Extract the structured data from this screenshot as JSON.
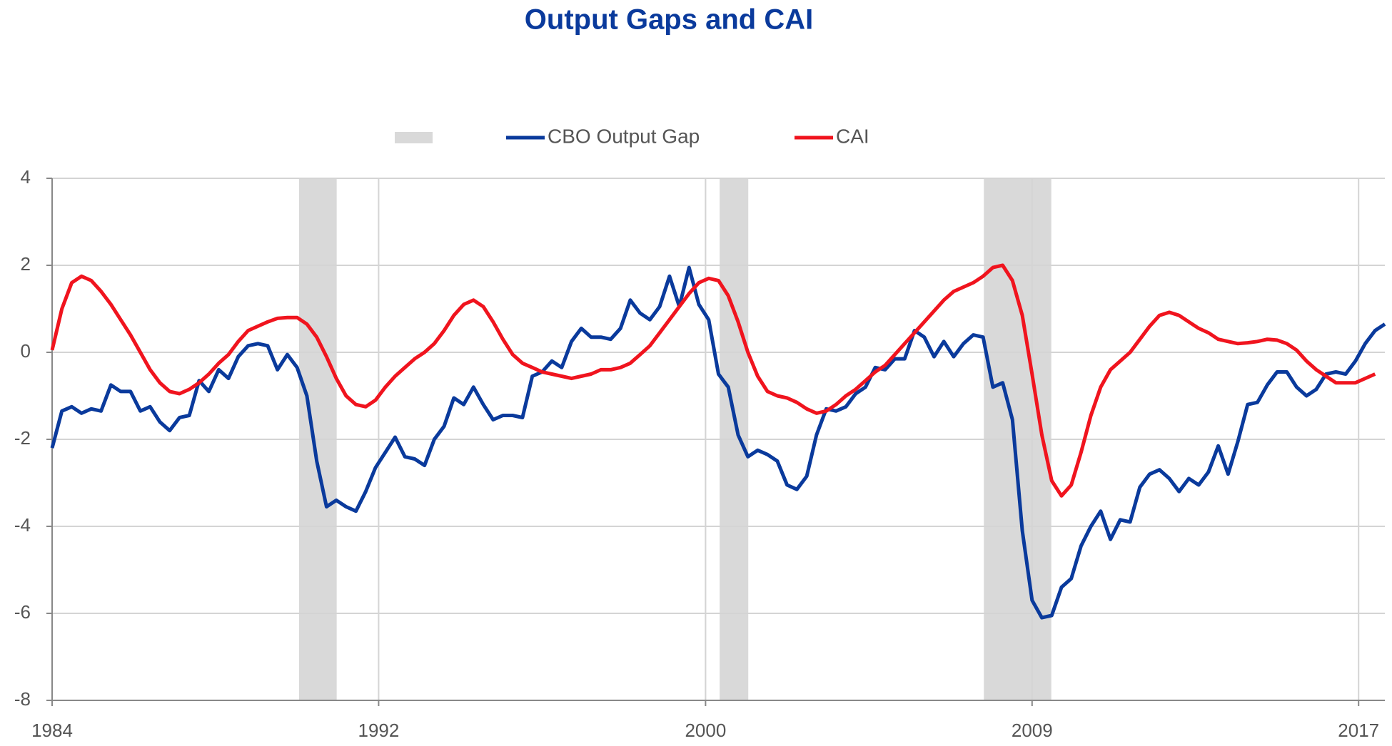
{
  "chart_data": {
    "type": "line",
    "title": "Output Gaps and CAI",
    "title_color": "#0a3a9c",
    "x": [
      1984,
      1984.25,
      1984.5,
      1984.75,
      1985,
      1985.25,
      1985.5,
      1985.75,
      1986,
      1986.25,
      1986.5,
      1986.75,
      1987,
      1987.25,
      1987.5,
      1987.75,
      1988,
      1988.25,
      1988.5,
      1988.75,
      1989,
      1989.25,
      1989.5,
      1989.75,
      1990,
      1990.25,
      1990.5,
      1990.75,
      1991,
      1991.25,
      1991.5,
      1991.75,
      1992,
      1992.25,
      1992.5,
      1992.75,
      1993,
      1993.25,
      1993.5,
      1993.75,
      1994,
      1994.25,
      1994.5,
      1994.75,
      1995,
      1995.25,
      1995.5,
      1995.75,
      1996,
      1996.25,
      1996.5,
      1996.75,
      1997,
      1997.25,
      1997.5,
      1997.75,
      1998,
      1998.25,
      1998.5,
      1998.75,
      1999,
      1999.25,
      1999.5,
      1999.75,
      2000,
      2000.25,
      2000.5,
      2000.75,
      2001,
      2001.25,
      2001.5,
      2001.75,
      2002,
      2002.25,
      2002.5,
      2002.75,
      2003,
      2003.25,
      2003.5,
      2003.75,
      2004,
      2004.25,
      2004.5,
      2004.75,
      2005,
      2005.25,
      2005.5,
      2005.75,
      2006,
      2006.25,
      2006.5,
      2006.75,
      2007,
      2007.25,
      2007.5,
      2007.75,
      2008,
      2008.25,
      2008.5,
      2008.75,
      2009,
      2009.25,
      2009.5,
      2009.75,
      2010,
      2010.25,
      2010.5,
      2010.75,
      2011,
      2011.25,
      2011.5,
      2011.75,
      2012,
      2012.25,
      2012.5,
      2012.75,
      2013,
      2013.25,
      2013.5,
      2013.75,
      2014,
      2014.25,
      2014.5,
      2014.75,
      2015,
      2015.25,
      2015.5,
      2015.75,
      2016,
      2016.25,
      2016.5,
      2016.75,
      2017,
      2017.25,
      2017.5,
      2017.75,
      2018
    ],
    "series": [
      {
        "name": "CBO Output Gap",
        "color": "#0a3a9c",
        "values": [
          -2.2,
          -1.35,
          -1.25,
          -1.4,
          -1.3,
          -1.35,
          -0.75,
          -0.9,
          -0.9,
          -1.35,
          -1.25,
          -1.6,
          -1.8,
          -1.5,
          -1.45,
          -0.65,
          -0.9,
          -0.4,
          -0.6,
          -0.1,
          0.15,
          0.2,
          0.15,
          -0.4,
          -0.05,
          -0.35,
          -1.0,
          -2.5,
          -3.55,
          -3.4,
          -3.55,
          -3.65,
          -3.2,
          -2.65,
          -2.3,
          -1.95,
          -2.4,
          -2.45,
          -2.6,
          -2.0,
          -1.7,
          -1.05,
          -1.2,
          -0.8,
          -1.2,
          -1.55,
          -1.45,
          -1.45,
          -1.5,
          -0.55,
          -0.45,
          -0.2,
          -0.35,
          0.25,
          0.55,
          0.35,
          0.35,
          0.3,
          0.55,
          1.2,
          0.9,
          0.75,
          1.05,
          1.75,
          1.05,
          1.95,
          1.1,
          0.75,
          -0.5,
          -0.8,
          -1.9,
          -2.4,
          -2.25,
          -2.35,
          -2.5,
          -3.05,
          -3.15,
          -2.85,
          -1.9,
          -1.3,
          -1.35,
          -1.25,
          -0.95,
          -0.8,
          -0.35,
          -0.4,
          -0.15,
          -0.15,
          0.5,
          0.35,
          -0.1,
          0.25,
          -0.1,
          0.2,
          0.4,
          0.35,
          -0.8,
          -0.7,
          -1.55,
          -4.1,
          -5.7,
          -6.1,
          -6.05,
          -5.4,
          -5.2,
          -4.45,
          -4.0,
          -3.65,
          -4.3,
          -3.85,
          -3.9,
          -3.1,
          -2.8,
          -2.7,
          -2.9,
          -3.2,
          -2.9,
          -3.05,
          -2.75,
          -2.15,
          -2.8,
          -2.05,
          -1.2,
          -1.15,
          -0.75,
          -0.45,
          -0.45,
          -0.8,
          -1.0,
          -0.85,
          -0.5,
          -0.45,
          -0.5,
          -0.2,
          0.2,
          0.5,
          0.65
        ]
      },
      {
        "name": "CAI",
        "color": "#f0141e",
        "values": [
          0.05,
          1.0,
          1.6,
          1.75,
          1.65,
          1.4,
          1.1,
          0.75,
          0.4,
          0.0,
          -0.4,
          -0.7,
          -0.9,
          -0.95,
          -0.85,
          -0.7,
          -0.5,
          -0.25,
          -0.05,
          0.25,
          0.5,
          0.6,
          0.7,
          0.78,
          0.8,
          0.8,
          0.65,
          0.35,
          -0.1,
          -0.6,
          -1.0,
          -1.2,
          -1.25,
          -1.1,
          -0.8,
          -0.55,
          -0.35,
          -0.15,
          0.0,
          0.2,
          0.5,
          0.85,
          1.1,
          1.2,
          1.05,
          0.7,
          0.3,
          -0.05,
          -0.25,
          -0.35,
          -0.45,
          -0.5,
          -0.55,
          -0.6,
          -0.55,
          -0.5,
          -0.4,
          -0.4,
          -0.35,
          -0.25,
          -0.05,
          0.15,
          0.45,
          0.75,
          1.05,
          1.35,
          1.6,
          1.7,
          1.65,
          1.3,
          0.7,
          0.0,
          -0.55,
          -0.9,
          -1.0,
          -1.05,
          -1.15,
          -1.3,
          -1.4,
          -1.35,
          -1.2,
          -1.0,
          -0.85,
          -0.65,
          -0.45,
          -0.3,
          -0.05,
          0.2,
          0.45,
          0.7,
          0.95,
          1.2,
          1.4,
          1.5,
          1.6,
          1.75,
          1.95,
          2.0,
          1.65,
          0.85,
          -0.5,
          -1.9,
          -2.95,
          -3.3,
          -3.05,
          -2.3,
          -1.45,
          -0.8,
          -0.4,
          -0.2,
          0.0,
          0.3,
          0.6,
          0.85,
          0.92,
          0.85,
          0.7,
          0.55,
          0.45,
          0.3,
          0.25,
          0.2,
          0.22,
          0.25,
          0.3,
          0.28,
          0.2,
          0.05,
          -0.2,
          -0.4,
          -0.55,
          -0.7,
          -0.7,
          -0.7,
          -0.6,
          -0.5,
          null
        ]
      }
    ],
    "recessions": [
      [
        1990.3,
        1991.26
      ],
      [
        2001.03,
        2001.76
      ],
      [
        2007.77,
        2009.49
      ]
    ],
    "recession_color": "#d9d9d9",
    "xlim": [
      1984,
      2018
    ],
    "xticks": [
      {
        "value": 1984,
        "label": "1984"
      },
      {
        "value": 1992.33,
        "label": "1992"
      },
      {
        "value": 2000.67,
        "label": "2000"
      },
      {
        "value": 2009,
        "label": "2009"
      },
      {
        "value": 2017.33,
        "label": "2017"
      }
    ],
    "ylim": [
      -8,
      4
    ],
    "yticks": [
      -8,
      -6,
      -4,
      -2,
      0,
      2,
      4
    ],
    "grid": true
  }
}
